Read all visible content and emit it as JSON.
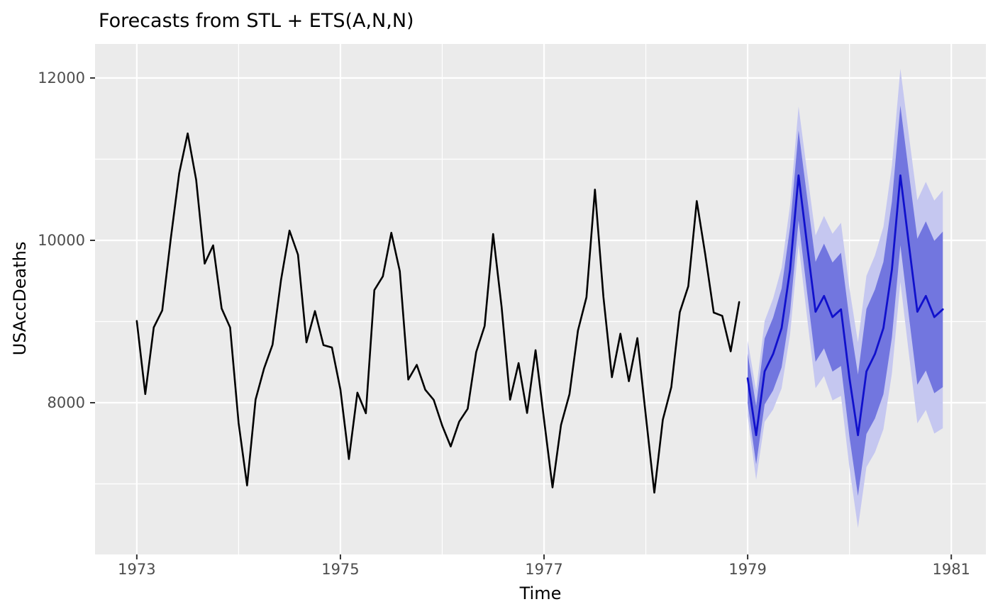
{
  "chart_data": {
    "type": "line",
    "title": "Forecasts from STL +  ETS(A,N,N)",
    "xlabel": "Time",
    "ylabel": "USAccDeaths",
    "xlim": [
      1972.59,
      1981.34
    ],
    "ylim": [
      6131,
      12419
    ],
    "grid": true,
    "legend": "none",
    "x_major_ticks": [
      1973,
      1975,
      1977,
      1979,
      1981
    ],
    "x_tick_labels": [
      "1973",
      "1975",
      "1977",
      "1979",
      "1981"
    ],
    "x_minor_gridlines": [
      1974,
      1976,
      1978,
      1980
    ],
    "y_major_ticks": [
      8000,
      10000,
      12000
    ],
    "y_tick_labels": [
      "8000",
      "10000",
      "12000"
    ],
    "y_minor_gridlines": [
      7000,
      9000,
      11000
    ],
    "panel_background": "#EBEBEB",
    "gridline_color": "#FFFFFF",
    "tick_mark_color": "#333333",
    "tick_label_color": "#4D4D4D",
    "text_color": "#000000",
    "observed": {
      "name": "USAccDeaths observed",
      "start_year": 1973,
      "frequency": 12,
      "color": "#000000",
      "values": [
        9007,
        8106,
        8928,
        9137,
        10017,
        10826,
        11317,
        10744,
        9713,
        9938,
        9161,
        8927,
        7750,
        6981,
        8038,
        8422,
        8714,
        9512,
        10120,
        9823,
        8743,
        9129,
        8710,
        8680,
        8162,
        7306,
        8124,
        7870,
        9387,
        9556,
        10093,
        9620,
        8285,
        8466,
        8160,
        8034,
        7717,
        7461,
        7767,
        7925,
        8623,
        8945,
        10078,
        9179,
        8037,
        8488,
        7874,
        8647,
        7792,
        6957,
        7726,
        8106,
        8890,
        9299,
        10625,
        9302,
        8314,
        8850,
        8265,
        8796,
        7836,
        6892,
        7791,
        8192,
        9115,
        9434,
        10484,
        9827,
        9110,
        9070,
        8633,
        9240
      ]
    },
    "forecast": {
      "name": "STL + ETS(A,N,N) point forecast",
      "start_year": 1979,
      "frequency": 12,
      "color": "#1010CC",
      "mean": [
        8300,
        7600,
        8385,
        8600,
        8920,
        9640,
        10800,
        9950,
        9120,
        9315,
        9055,
        9150,
        8300,
        7600,
        8385,
        8600,
        8920,
        9640,
        10800,
        9950,
        9120,
        9315,
        9055,
        9150
      ],
      "intervals": [
        {
          "level": 80,
          "fill": "#7276DF",
          "lower": [
            7995,
            7241,
            7979,
            8152,
            8434,
            9118,
            10245,
            9364,
            8504,
            8670,
            8383,
            8453,
            7577,
            6853,
            7615,
            7806,
            8105,
            8803,
            9941,
            9071,
            8221,
            8396,
            8117,
            8192
          ],
          "upper": [
            8605,
            7959,
            8791,
            9048,
            9406,
            10162,
            11355,
            10536,
            9736,
            9960,
            9727,
            9847,
            9023,
            8347,
            9155,
            9394,
            9735,
            10477,
            11659,
            10829,
            10019,
            10234,
            9993,
            10108
          ]
        },
        {
          "level": 95,
          "fill": "#C5C7F0",
          "lower": [
            7834,
            7051,
            7764,
            7916,
            8177,
            8842,
            9951,
            9054,
            8179,
            8329,
            8028,
            8084,
            7195,
            6457,
            7207,
            7387,
            7673,
            8360,
            9487,
            8605,
            7746,
            7910,
            7620,
            7686
          ],
          "upper": [
            8766,
            8149,
            9006,
            9284,
            9663,
            10438,
            11649,
            10846,
            10061,
            10301,
            10082,
            10216,
            9405,
            8743,
            9563,
            9813,
            10167,
            10920,
            12113,
            11295,
            10494,
            10720,
            10490,
            10614
          ]
        }
      ]
    }
  }
}
